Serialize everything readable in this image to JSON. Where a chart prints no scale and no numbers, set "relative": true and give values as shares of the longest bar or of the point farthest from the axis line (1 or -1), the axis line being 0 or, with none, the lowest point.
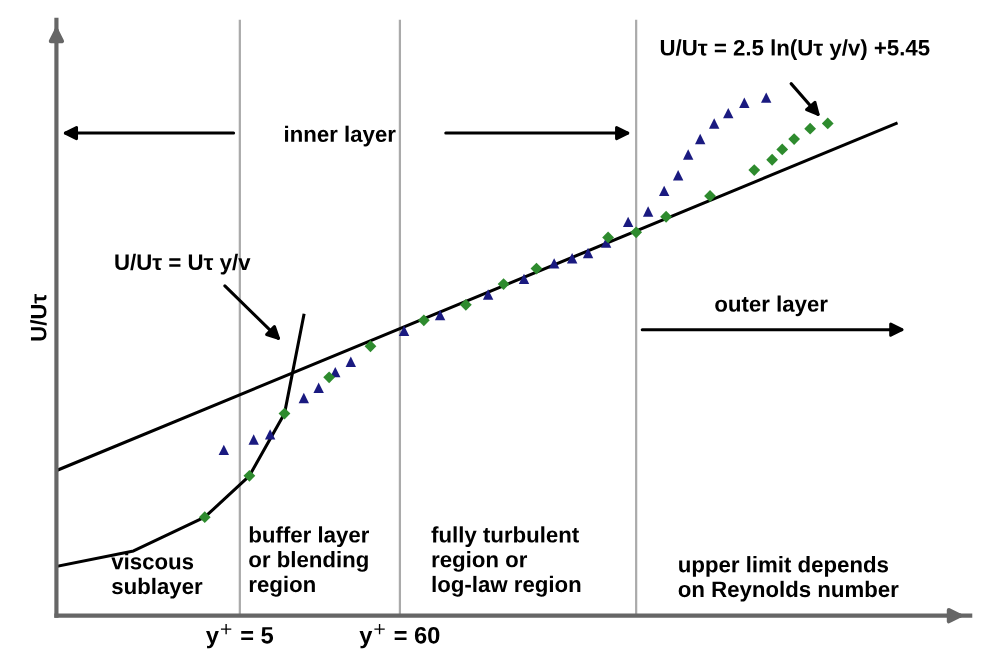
{
  "chart_data": {
    "type": "scatter",
    "relative": true,
    "log": "x",
    "ylabel": "U/Uτ",
    "xlim": [
      0.29,
      420000
    ],
    "xticks": [
      {
        "value": 5,
        "label": "y$^{+}$ = 5"
      },
      {
        "value": 60,
        "label": "y$^{+}$ = 60"
      }
    ],
    "grid": false,
    "legend": false,
    "ref_lines": [
      {
        "axis": "x",
        "value": 5,
        "color": "#aaaaaa"
      },
      {
        "axis": "x",
        "value": 60,
        "color": "#aaaaaa"
      },
      {
        "axis": "x",
        "value": 2350,
        "color": "#aaaaaa"
      }
    ],
    "series": [
      {
        "marker": "triangle",
        "color": "#1a1a80",
        "x": [
          3.9,
          6.2,
          8.0,
          13.5,
          17,
          22,
          28,
          64,
          112,
          236,
          412,
          658,
          870,
          1114,
          1475,
          2075,
          2830,
          3630,
          4510,
          5270,
          6350,
          7890,
          9820,
          12600,
          17700
        ],
        "values": [
          0.32,
          0.34,
          0.35,
          0.42,
          0.44,
          0.47,
          0.49,
          0.55,
          0.58,
          0.62,
          0.65,
          0.68,
          0.69,
          0.7,
          0.72,
          0.76,
          0.78,
          0.82,
          0.85,
          0.89,
          0.92,
          0.95,
          0.97,
          0.99,
          1.0
        ]
      },
      {
        "marker": "diamond",
        "color": "#2e8b2e",
        "x": [
          2.9,
          5.8,
          10,
          20,
          38,
          87,
          167,
          300,
          500,
          1520,
          2350,
          3740,
          7400,
          14700,
          19400,
          22700,
          27300,
          35000,
          46000
        ],
        "values": [
          0.19,
          0.27,
          0.39,
          0.46,
          0.52,
          0.57,
          0.6,
          0.64,
          0.67,
          0.73,
          0.74,
          0.77,
          0.81,
          0.86,
          0.88,
          0.9,
          0.92,
          0.94,
          0.95
        ]
      },
      {
        "type": "line",
        "color": "#000000",
        "x": [
          0.29,
          133000
        ],
        "values": [
          0.28,
          0.95
        ]
      },
      {
        "type": "line",
        "color": "#000000",
        "x": [
          0.29,
          0.96,
          2.9,
          5.8,
          10,
          13.5
        ],
        "values": [
          0.095,
          0.125,
          0.19,
          0.27,
          0.39,
          0.58
        ]
      }
    ],
    "annotations": [
      "U/Uτ = 2.5 ln(Uτ y/v) +5.45",
      "U/Uτ = Uτ y/v",
      "inner layer",
      "outer layer",
      "viscous\nsublayer",
      "buffer layer\nor blending\nregion",
      "fully turbulent\nregion or\nlog-law region",
      "upper limit depends\non Reynolds number"
    ]
  }
}
